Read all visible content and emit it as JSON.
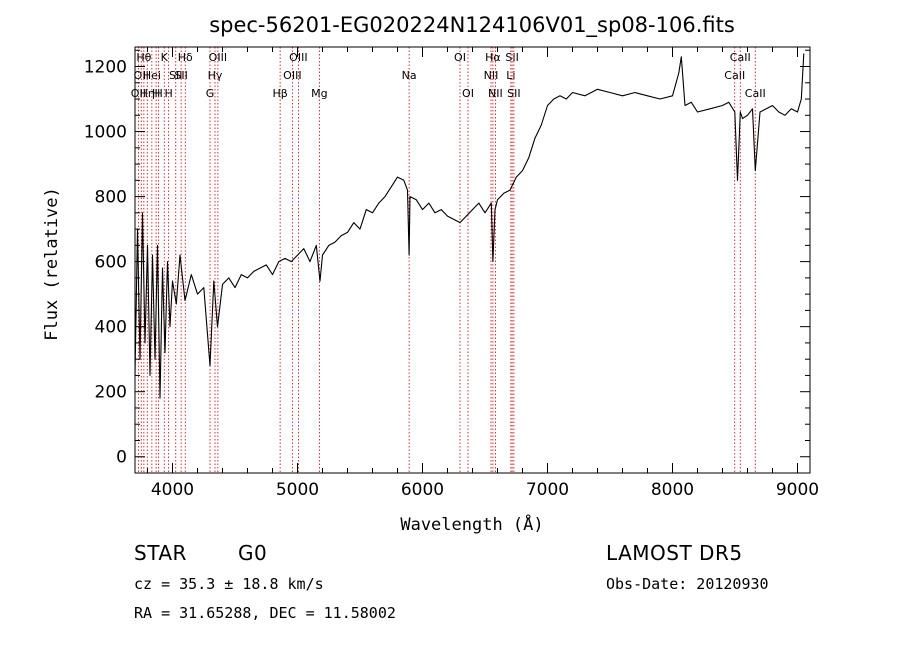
{
  "chart_data": {
    "type": "line",
    "title": "spec-56201-EG020224N124106V01_sp08-106.fits",
    "xlabel": "Wavelength (Å)",
    "ylabel": "Flux (relative)",
    "xlim": [
      3700,
      9100
    ],
    "ylim": [
      -50,
      1260
    ],
    "xticks": [
      4000,
      5000,
      6000,
      7000,
      8000,
      9000
    ],
    "yticks": [
      0,
      200,
      400,
      600,
      800,
      1000,
      1200
    ],
    "line_color": "#000000",
    "marker_color": "#cc0000",
    "grid": false,
    "series": [
      {
        "x": [
          3700,
          3720,
          3740,
          3760,
          3780,
          3800,
          3820,
          3840,
          3860,
          3880,
          3900,
          3920,
          3940,
          3960,
          3980,
          4000,
          4030,
          4060,
          4100,
          4150,
          4200,
          4250,
          4300,
          4330,
          4360,
          4400,
          4450,
          4500,
          4550,
          4600,
          4650,
          4700,
          4750,
          4800,
          4850,
          4900,
          4950,
          5000,
          5050,
          5100,
          5150,
          5180,
          5200,
          5250,
          5300,
          5350,
          5400,
          5450,
          5500,
          5550,
          5600,
          5650,
          5700,
          5750,
          5800,
          5850,
          5880,
          5893,
          5900,
          5950,
          6000,
          6050,
          6100,
          6150,
          6200,
          6250,
          6300,
          6350,
          6400,
          6450,
          6500,
          6550,
          6563,
          6580,
          6600,
          6650,
          6700,
          6750,
          6800,
          6850,
          6900,
          6950,
          7000,
          7050,
          7100,
          7150,
          7200,
          7300,
          7400,
          7500,
          7600,
          7700,
          7800,
          7900,
          8000,
          8050,
          8070,
          8100,
          8150,
          8200,
          8300,
          8400,
          8450,
          8498,
          8520,
          8542,
          8560,
          8600,
          8640,
          8662,
          8700,
          8750,
          8800,
          8850,
          8900,
          8950,
          9000,
          9030,
          9050
        ],
        "y": [
          250,
          700,
          300,
          750,
          350,
          650,
          250,
          620,
          300,
          650,
          180,
          580,
          320,
          600,
          400,
          540,
          470,
          620,
          480,
          560,
          500,
          520,
          280,
          540,
          400,
          530,
          550,
          520,
          560,
          550,
          570,
          580,
          590,
          560,
          600,
          610,
          600,
          620,
          640,
          600,
          650,
          540,
          620,
          650,
          660,
          680,
          690,
          720,
          700,
          760,
          750,
          780,
          800,
          830,
          860,
          850,
          820,
          620,
          800,
          790,
          760,
          780,
          750,
          760,
          740,
          730,
          720,
          740,
          760,
          780,
          750,
          780,
          600,
          760,
          790,
          810,
          820,
          860,
          880,
          920,
          980,
          1020,
          1080,
          1100,
          1110,
          1100,
          1120,
          1110,
          1130,
          1120,
          1110,
          1120,
          1110,
          1100,
          1110,
          1180,
          1230,
          1080,
          1090,
          1060,
          1070,
          1080,
          1090,
          1060,
          850,
          1060,
          1040,
          1050,
          1070,
          880,
          1060,
          1070,
          1080,
          1060,
          1050,
          1070,
          1060,
          1100,
          1240
        ]
      }
    ],
    "line_markers": [
      {
        "x": 3727,
        "label": "OII",
        "row": 2
      },
      {
        "x": 3750,
        "label": "OII",
        "row": 1
      },
      {
        "x": 3771,
        "label": "Hθ",
        "row": 0
      },
      {
        "x": 3798,
        "label": "Hη",
        "row": 2
      },
      {
        "x": 3835,
        "label": "Hei",
        "row": 1
      },
      {
        "x": 3869,
        "label": "H",
        "row": 2
      },
      {
        "x": 3889,
        "label": "H",
        "row": 2
      },
      {
        "x": 3934,
        "label": "K",
        "row": 0
      },
      {
        "x": 3969,
        "label": "H",
        "row": 2
      },
      {
        "x": 4026,
        "label": "SII",
        "row": 1
      },
      {
        "x": 4069,
        "label": "SII",
        "row": 1
      },
      {
        "x": 4102,
        "label": "Hδ",
        "row": 0
      },
      {
        "x": 4300,
        "label": "G",
        "row": 2
      },
      {
        "x": 4340,
        "label": "Hγ",
        "row": 1
      },
      {
        "x": 4363,
        "label": "OIII",
        "row": 0
      },
      {
        "x": 4861,
        "label": "Hβ",
        "row": 2
      },
      {
        "x": 4959,
        "label": "OIII",
        "row": 1
      },
      {
        "x": 5007,
        "label": "OIII",
        "row": 0
      },
      {
        "x": 5175,
        "label": "Mg",
        "row": 2
      },
      {
        "x": 5893,
        "label": "Na",
        "row": 1
      },
      {
        "x": 6300,
        "label": "OI",
        "row": 0
      },
      {
        "x": 6364,
        "label": "OI",
        "row": 2
      },
      {
        "x": 6548,
        "label": "NII",
        "row": 1
      },
      {
        "x": 6563,
        "label": "Hα",
        "row": 0
      },
      {
        "x": 6583,
        "label": "NII",
        "row": 2
      },
      {
        "x": 6707,
        "label": "Li",
        "row": 1
      },
      {
        "x": 6717,
        "label": "SII",
        "row": 0
      },
      {
        "x": 6731,
        "label": "SII",
        "row": 2
      },
      {
        "x": 8498,
        "label": "CaII",
        "row": 1
      },
      {
        "x": 8542,
        "label": "CaII",
        "row": 0
      },
      {
        "x": 8662,
        "label": "CaII",
        "row": 2
      }
    ]
  },
  "info": {
    "class_label": "STAR",
    "subclass_label": "G0",
    "survey_label": "LAMOST DR5",
    "cz_text": "cz = 35.3 ± 18.8 km/s",
    "obs_date_text": "Obs-Date: 20120930",
    "coords_text": "RA =  31.65288, DEC =  11.58002"
  }
}
